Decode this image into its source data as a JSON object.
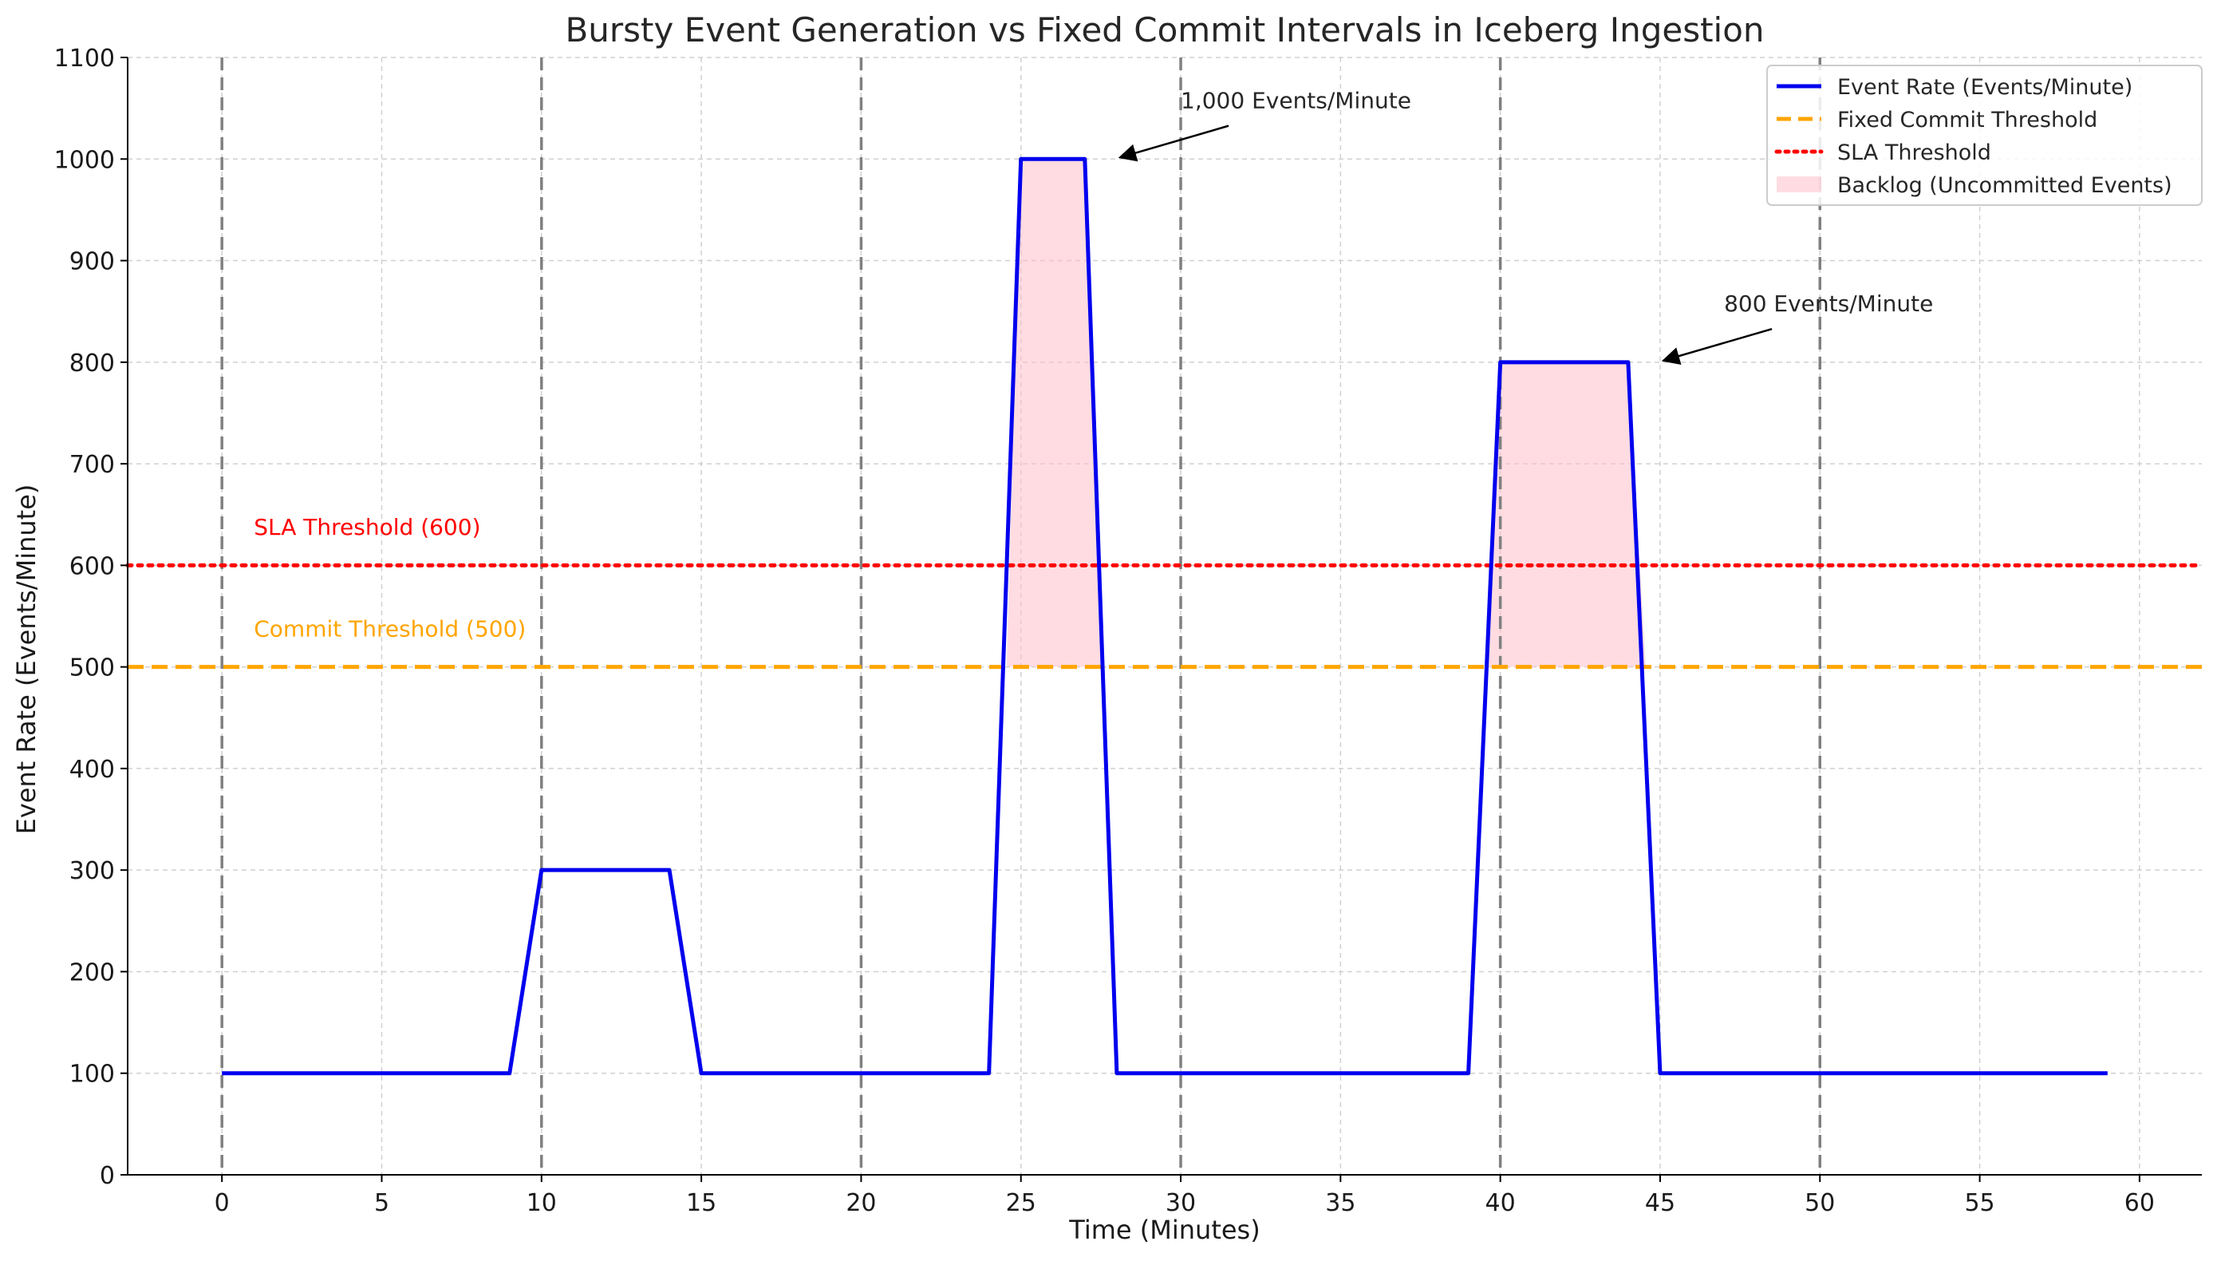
{
  "chart_data": {
    "type": "line",
    "title": "Bursty Event Generation vs Fixed Commit Intervals in Iceberg Ingestion",
    "xlabel": "Time (Minutes)",
    "ylabel": "Event Rate (Events/Minute)",
    "xlim": [
      -2.95,
      61.95
    ],
    "ylim": [
      0,
      1100
    ],
    "x_ticks": [
      0,
      5,
      10,
      15,
      20,
      25,
      30,
      35,
      40,
      45,
      50,
      55,
      60
    ],
    "y_ticks": [
      0,
      100,
      200,
      300,
      400,
      500,
      600,
      700,
      800,
      900,
      1000,
      1100
    ],
    "grid": true,
    "legend_position": "top-right",
    "colors": {
      "event_rate": "#0000ee",
      "commit_threshold": "#ffa500",
      "sla_threshold": "#ff0000",
      "backlog_fill": "#ffc0cb",
      "commit_interval_lines": "#808080"
    },
    "series": [
      {
        "name": "Event Rate (Events/Minute)",
        "style": "solid",
        "x": [
          0,
          9,
          10,
          14,
          15,
          24,
          25,
          27,
          28,
          39,
          40,
          44,
          45,
          59
        ],
        "y": [
          100,
          100,
          300,
          300,
          100,
          100,
          1000,
          1000,
          100,
          100,
          800,
          800,
          100,
          100
        ]
      },
      {
        "name": "Fixed Commit Threshold",
        "style": "dashed",
        "y": 500
      },
      {
        "name": "SLA Threshold",
        "style": "dotted",
        "y": 600
      },
      {
        "name": "Backlog (Uncommitted Events)",
        "style": "fill",
        "baseline": 500
      }
    ],
    "commit_intervals_x": [
      0,
      10,
      20,
      30,
      40,
      50
    ],
    "backlog_regions": [
      {
        "x": [
          24.55,
          25,
          27,
          27.55
        ],
        "y": [
          500,
          1000,
          1000,
          500
        ]
      },
      {
        "x": [
          39.55,
          40,
          44,
          44.55
        ],
        "y": [
          500,
          800,
          800,
          500
        ]
      }
    ],
    "annotations": [
      {
        "text": "1,000 Events/Minute",
        "text_x": 30,
        "text_y": 1050,
        "point_x": 28,
        "point_y": 1000
      },
      {
        "text": "800 Events/Minute",
        "text_x": 47,
        "text_y": 850,
        "point_x": 45,
        "point_y": 800
      },
      {
        "text": "SLA Threshold (600)",
        "text_x": 1,
        "text_y": 630,
        "color": "#ff0000"
      },
      {
        "text": "Commit Threshold (500)",
        "text_x": 1,
        "text_y": 530,
        "color": "#ffa500"
      }
    ]
  }
}
